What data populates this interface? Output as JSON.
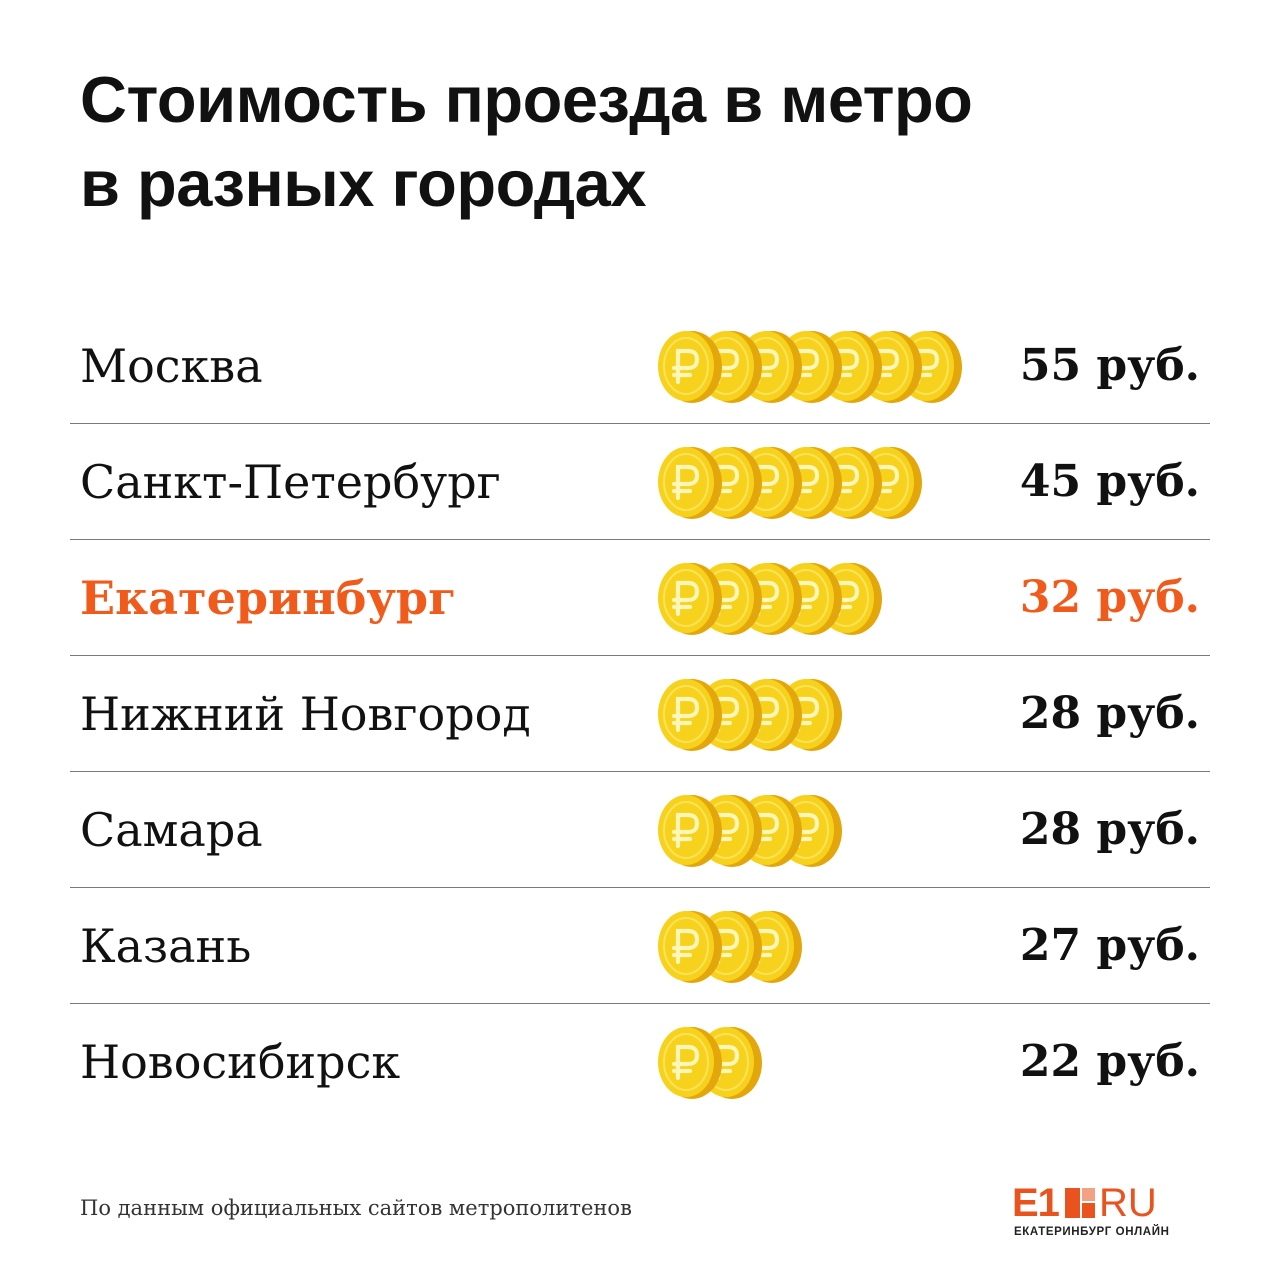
{
  "header": {
    "title_line1": "Стоимость проезда в метро",
    "title_line2": "в разных городах"
  },
  "chart_data": {
    "type": "table",
    "title": "Стоимость проезда в метро в разных городах",
    "unit": "руб.",
    "rows": [
      {
        "city": "Москва",
        "value": 55,
        "price_label": "55 руб.",
        "coins": 7,
        "highlight": false
      },
      {
        "city": "Санкт-Петербург",
        "value": 45,
        "price_label": "45 руб.",
        "coins": 6,
        "highlight": false
      },
      {
        "city": "Екатеринбург",
        "value": 32,
        "price_label": "32 руб.",
        "coins": 5,
        "highlight": true
      },
      {
        "city": "Нижний Новгород",
        "value": 28,
        "price_label": "28 руб.",
        "coins": 4,
        "highlight": false
      },
      {
        "city": "Самара",
        "value": 28,
        "price_label": "28 руб.",
        "coins": 4,
        "highlight": false
      },
      {
        "city": "Казань",
        "value": 27,
        "price_label": "27 руб.",
        "coins": 3,
        "highlight": false
      },
      {
        "city": "Новосибирск",
        "value": 22,
        "price_label": "22 руб.",
        "coins": 2,
        "highlight": false
      }
    ]
  },
  "footer": {
    "source": "По данным официальных сайтов метрополитенов",
    "logo_main": "E1",
    "logo_ru": "RU",
    "logo_sub": "ЕКАТЕРИНБУРГ ОНЛАЙН"
  },
  "icons": {
    "coin": "ruble-coin-icon",
    "logo": "e1-logo-icon"
  },
  "colors": {
    "highlight": "#f05a1a",
    "coin": "#f7d21c",
    "coin_edge": "#e3a70c",
    "text": "#111111",
    "logo": "#e8531e"
  }
}
